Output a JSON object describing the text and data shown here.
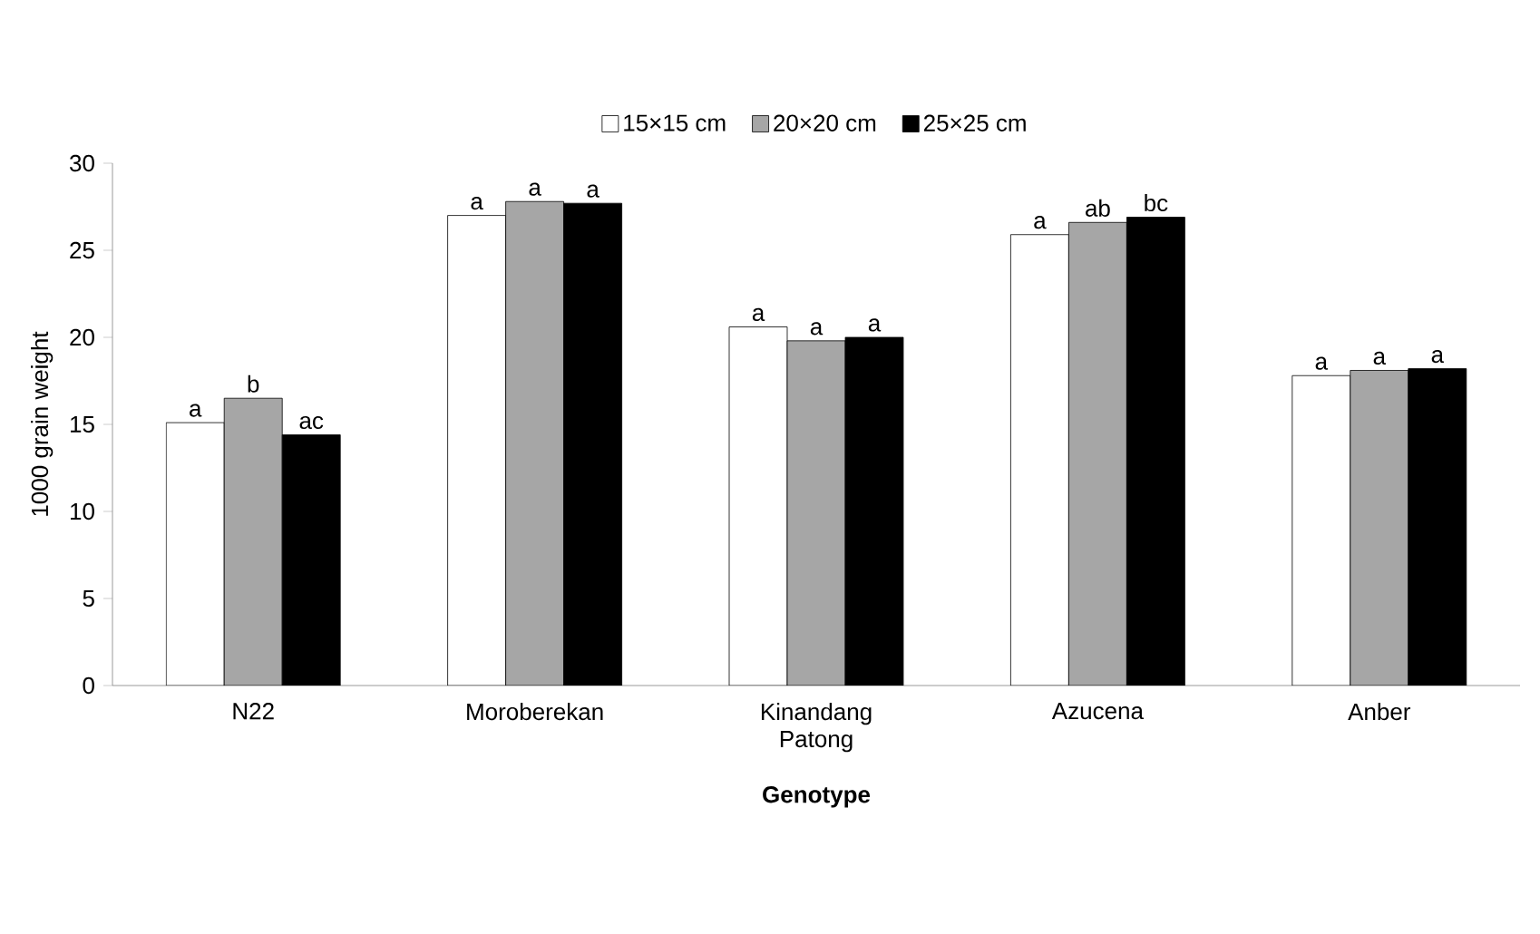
{
  "chart_data": {
    "type": "bar",
    "xlabel": "Genotype",
    "ylabel": "1000 grain weight",
    "categories": [
      "N22",
      "Moroberekan",
      "Kinandang Patong",
      "Azucena",
      "Anber"
    ],
    "series": [
      {
        "name": "15×15 cm",
        "color": "#ffffff",
        "values": [
          15.1,
          27.0,
          20.6,
          25.9,
          17.8
        ]
      },
      {
        "name": "20×20 cm",
        "color": "#a6a6a6",
        "values": [
          16.5,
          27.8,
          19.8,
          26.6,
          18.1
        ]
      },
      {
        "name": "25×25 cm",
        "color": "#000000",
        "values": [
          14.4,
          27.7,
          20.0,
          26.9,
          18.2
        ]
      }
    ],
    "ylim": [
      0,
      30
    ],
    "yticks": [
      0,
      5,
      10,
      15,
      20,
      25,
      30
    ],
    "grid": false,
    "legend": "top",
    "annotations": [
      "a",
      "b",
      "ac",
      "a",
      "a",
      "a",
      "a",
      "a",
      "a",
      "a",
      "ab",
      "bc",
      "a",
      "a",
      "a"
    ]
  }
}
